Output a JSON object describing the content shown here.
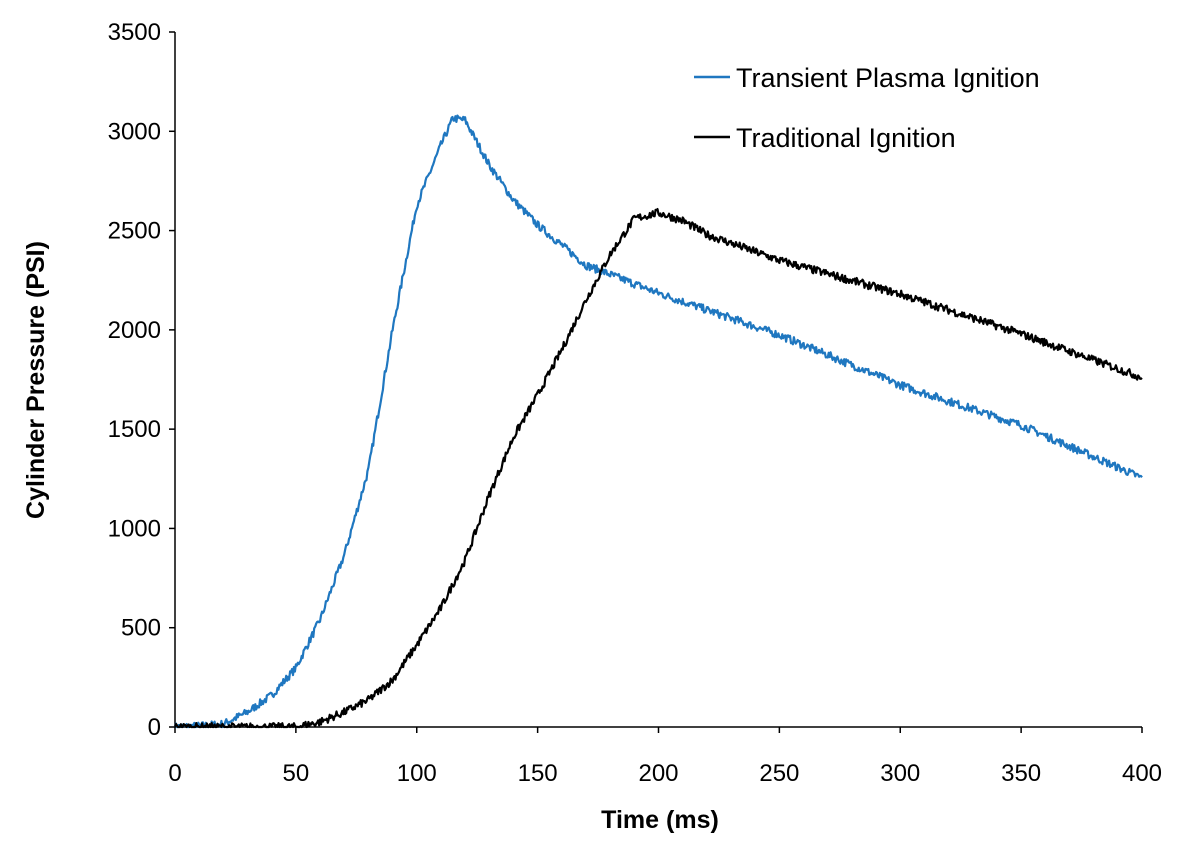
{
  "chart_data": {
    "type": "line",
    "title": "",
    "xlabel": "Time (ms)",
    "ylabel": "Cylinder Pressure (PSI)",
    "xlim": [
      0,
      400
    ],
    "ylim": [
      0,
      3500
    ],
    "xticks": [
      0,
      50,
      100,
      150,
      200,
      250,
      300,
      350,
      400
    ],
    "yticks": [
      0,
      500,
      1000,
      1500,
      2000,
      2500,
      3000,
      3500
    ],
    "grid": false,
    "legend_position": "top-right",
    "series": [
      {
        "name": "Transient Plasma Ignition",
        "color": "#1F77C0",
        "x": [
          0,
          10,
          20,
          30,
          40,
          50,
          60,
          70,
          80,
          90,
          100,
          110,
          115,
          120,
          130,
          140,
          150,
          170,
          200,
          250,
          300,
          350,
          400
        ],
        "y": [
          0,
          5,
          15,
          75,
          160,
          297,
          540,
          866,
          1294,
          2000,
          2628,
          2930,
          3066,
          3056,
          2830,
          2654,
          2528,
          2326,
          2185,
          1974,
          1722,
          1520,
          1254
        ]
      },
      {
        "name": "Traditional Ignition",
        "color": "#000000",
        "x": [
          0,
          50,
          60,
          70,
          80,
          90,
          100,
          110,
          120,
          130,
          140,
          150,
          160,
          170,
          180,
          190,
          200,
          210,
          220,
          250,
          300,
          350,
          400
        ],
        "y": [
          0,
          0,
          25,
          75,
          136,
          237,
          413,
          600,
          840,
          1168,
          1460,
          1672,
          1900,
          2150,
          2380,
          2560,
          2590,
          2550,
          2480,
          2350,
          2180,
          1980,
          1760
        ]
      }
    ]
  }
}
